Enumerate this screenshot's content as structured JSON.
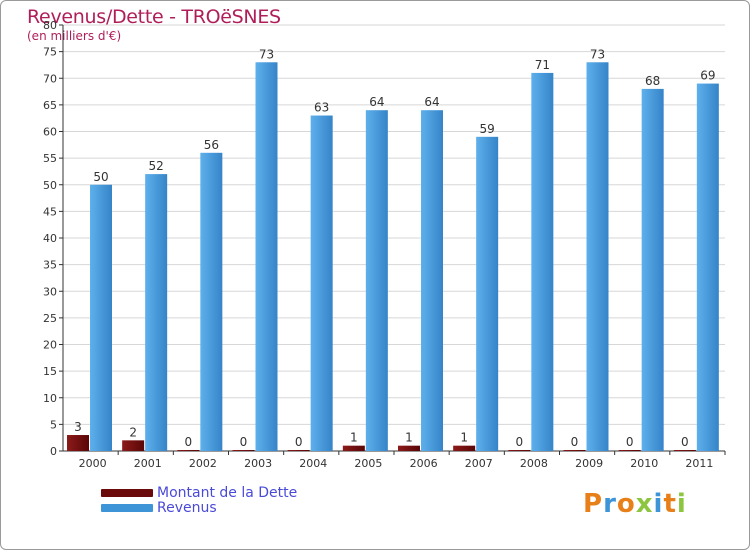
{
  "title": "Revenus/Dette - TROëSNES",
  "subtitle": "(en milliers d'€)",
  "colors": {
    "dette": "#6b0a0a",
    "revenus": "#3d95d8",
    "grid": "#d7d7d7",
    "axis": "#333333",
    "title": "#b01e5a",
    "legend_text": "#4a4ad8"
  },
  "legend": {
    "items": [
      {
        "label": "Montant de la Dette",
        "color": "#6b0a0a"
      },
      {
        "label": "Revenus",
        "color": "#3d95d8"
      }
    ]
  },
  "logo": {
    "text": "Proxiti",
    "letter_colors": [
      "#e8801a",
      "#3d95d8",
      "#e8801a",
      "#8cc63f",
      "#3d95d8",
      "#e8801a",
      "#8cc63f"
    ]
  },
  "chart_data": {
    "type": "bar",
    "title": "Revenus/Dette - TROëSNES",
    "ylabel": "(en milliers d'€)",
    "xlabel": "",
    "categories": [
      "2000",
      "2001",
      "2002",
      "2003",
      "2004",
      "2005",
      "2006",
      "2007",
      "2008",
      "2009",
      "2010",
      "2011"
    ],
    "series": [
      {
        "name": "Montant de la Dette",
        "values": [
          3,
          2,
          0,
          0,
          0,
          1,
          1,
          1,
          0,
          0,
          0,
          0
        ]
      },
      {
        "name": "Revenus",
        "values": [
          50,
          52,
          56,
          73,
          63,
          64,
          64,
          59,
          71,
          73,
          68,
          69
        ]
      }
    ],
    "ylim": [
      0,
      80
    ],
    "yticks": [
      0,
      5,
      10,
      15,
      20,
      25,
      30,
      35,
      40,
      45,
      50,
      55,
      60,
      65,
      70,
      75,
      80
    ],
    "grid": true,
    "legend_position": "bottom-left"
  }
}
